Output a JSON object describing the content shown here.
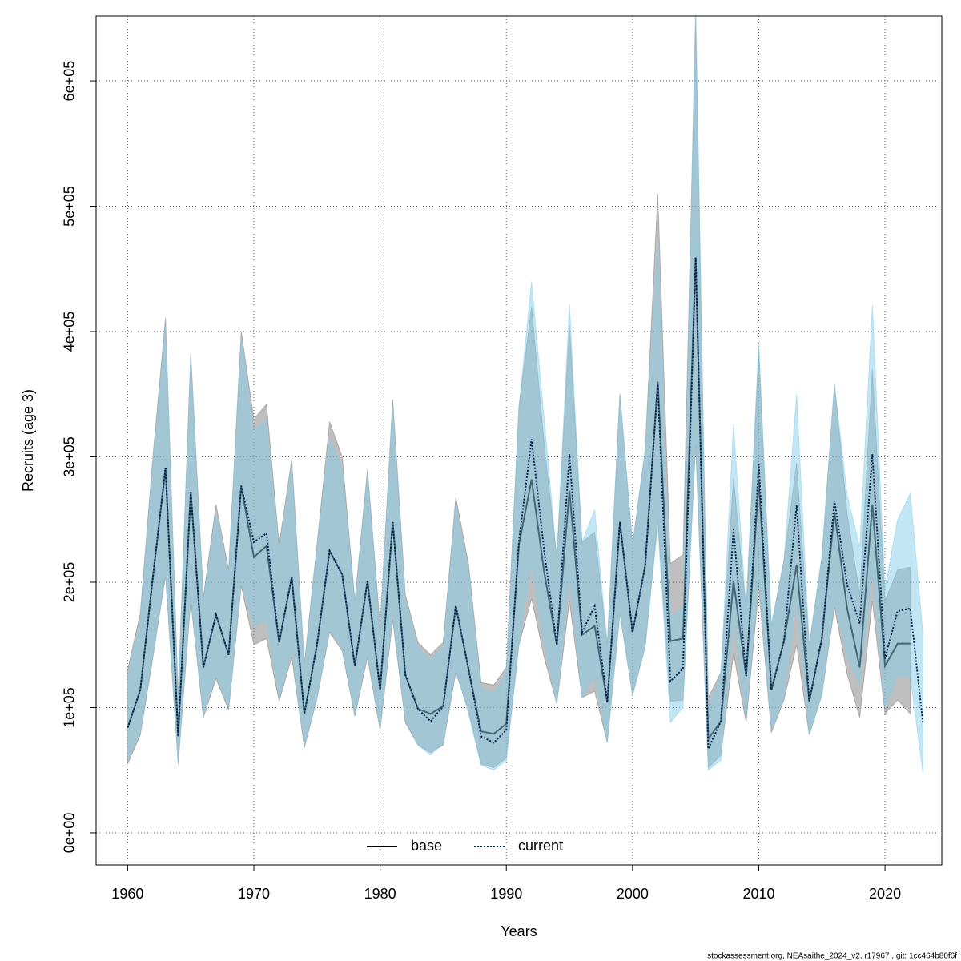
{
  "chart_data": {
    "type": "line",
    "xlabel": "Years",
    "ylabel": "Recruits (age 3)",
    "footnote": "stockassessment.org, NEAsaithe_2024_v2, r17967 , git: 1cc464b80f6f",
    "x": [
      1960,
      1961,
      1962,
      1963,
      1964,
      1965,
      1966,
      1967,
      1968,
      1969,
      1970,
      1971,
      1972,
      1973,
      1974,
      1975,
      1976,
      1977,
      1978,
      1979,
      1980,
      1981,
      1982,
      1983,
      1984,
      1985,
      1986,
      1987,
      1988,
      1989,
      1990,
      1991,
      1992,
      1993,
      1994,
      1995,
      1996,
      1997,
      1998,
      1999,
      2000,
      2001,
      2002,
      2003,
      2004,
      2005,
      2006,
      2007,
      2008,
      2009,
      2010,
      2011,
      2012,
      2013,
      2014,
      2015,
      2016,
      2017,
      2018,
      2019,
      2020,
      2021,
      2022,
      2023
    ],
    "xlim": [
      1957.5,
      2024.5
    ],
    "xticks": [
      1960,
      1970,
      1980,
      1990,
      2000,
      2010,
      2020
    ],
    "ylim": [
      -25600,
      651800
    ],
    "yticks": [
      {
        "value": 0,
        "label": "0e+00"
      },
      {
        "value": 100000,
        "label": "1e+05"
      },
      {
        "value": 200000,
        "label": "2e+05"
      },
      {
        "value": 300000,
        "label": "3e+05"
      },
      {
        "value": 400000,
        "label": "4e+05"
      },
      {
        "value": 500000,
        "label": "5e+05"
      },
      {
        "value": 600000,
        "label": "6e+05"
      }
    ],
    "grid": true,
    "legend": "bottom",
    "series": [
      {
        "name": "base",
        "color": "#000000",
        "dash": "solid",
        "band_color": "rgba(128,128,128,0.5)",
        "values": [
          84000,
          114000,
          204000,
          291000,
          77000,
          272000,
          132000,
          174000,
          142000,
          277000,
          220000,
          229000,
          152000,
          204000,
          95000,
          150000,
          225000,
          206000,
          133000,
          201000,
          114000,
          248000,
          126000,
          99000,
          95000,
          101000,
          181000,
          131000,
          81000,
          79000,
          87000,
          230000,
          282000,
          208000,
          150000,
          273000,
          158000,
          165000,
          104000,
          248000,
          160000,
          213000,
          360000,
          153000,
          155000,
          459000,
          75000,
          89000,
          201000,
          125000,
          281000,
          114000,
          153000,
          214000,
          105000,
          155000,
          256000,
          179000,
          132000,
          262000,
          133000,
          151000,
          151000,
          null
        ],
        "lower": [
          55000,
          78000,
          140000,
          205000,
          55000,
          185000,
          92000,
          123000,
          98000,
          197000,
          150000,
          155000,
          105000,
          140000,
          68000,
          107000,
          160000,
          145000,
          93000,
          140000,
          82000,
          170000,
          88000,
          70000,
          64000,
          70000,
          128000,
          98000,
          55000,
          52000,
          60000,
          150000,
          187000,
          140000,
          103000,
          185000,
          108000,
          113000,
          72000,
          175000,
          110000,
          148000,
          250000,
          105000,
          106000,
          310000,
          52000,
          62000,
          143000,
          88000,
          195000,
          80000,
          106000,
          150000,
          78000,
          110000,
          180000,
          127000,
          92000,
          185000,
          95000,
          106000,
          95000,
          null
        ],
        "upper": [
          130000,
          175000,
          300000,
          411000,
          110000,
          383000,
          188000,
          262000,
          210000,
          400000,
          330000,
          342000,
          230000,
          298000,
          135000,
          230000,
          328000,
          300000,
          185000,
          290000,
          165000,
          346000,
          190000,
          152000,
          142000,
          152000,
          268000,
          215000,
          120000,
          118000,
          132000,
          340000,
          420000,
          310000,
          220000,
          405000,
          232000,
          240000,
          150000,
          350000,
          230000,
          305000,
          510000,
          215000,
          222000,
          650000,
          108000,
          128000,
          283000,
          178000,
          385000,
          165000,
          218000,
          295000,
          150000,
          220000,
          358000,
          255000,
          190000,
          370000,
          185000,
          210000,
          212000,
          null
        ]
      },
      {
        "name": "current",
        "color": "#00264d",
        "dash": "dotted",
        "band_color": "rgba(135,206,235,0.5)",
        "values": [
          84000,
          114000,
          204000,
          291000,
          77000,
          272000,
          132000,
          174000,
          142000,
          277000,
          232000,
          239000,
          152000,
          204000,
          95000,
          150000,
          225000,
          206000,
          133000,
          201000,
          114000,
          248000,
          126000,
          99000,
          89000,
          101000,
          181000,
          131000,
          77000,
          72000,
          82000,
          233000,
          314000,
          225000,
          150000,
          302000,
          160000,
          181000,
          104000,
          248000,
          160000,
          213000,
          358000,
          121000,
          131000,
          459000,
          67000,
          89000,
          242000,
          125000,
          294000,
          114000,
          153000,
          262000,
          105000,
          155000,
          265000,
          198000,
          167000,
          302000,
          139000,
          177000,
          179000,
          88000
        ],
        "lower": [
          58000,
          80000,
          142000,
          207000,
          57000,
          188000,
          94000,
          125000,
          100000,
          200000,
          165000,
          170000,
          108000,
          145000,
          70000,
          108000,
          162000,
          148000,
          95000,
          143000,
          84000,
          175000,
          90000,
          70000,
          62000,
          72000,
          130000,
          95000,
          54000,
          50000,
          58000,
          150000,
          215000,
          150000,
          103000,
          205000,
          108000,
          125000,
          72000,
          175000,
          110000,
          148000,
          245000,
          88000,
          100000,
          315000,
          50000,
          58000,
          170000,
          92000,
          205000,
          82000,
          108000,
          185000,
          78000,
          110000,
          185000,
          140000,
          118000,
          210000,
          100000,
          125000,
          125000,
          48000
        ],
        "upper": [
          125000,
          170000,
          295000,
          405000,
          105000,
          378000,
          185000,
          255000,
          205000,
          395000,
          320000,
          330000,
          225000,
          292000,
          132000,
          228000,
          315000,
          290000,
          182000,
          285000,
          160000,
          340000,
          185000,
          148000,
          138000,
          148000,
          262000,
          210000,
          115000,
          112000,
          128000,
          340000,
          440000,
          330000,
          220000,
          422000,
          232000,
          258000,
          150000,
          350000,
          230000,
          305000,
          470000,
          172000,
          180000,
          665000,
          96000,
          128000,
          326000,
          178000,
          392000,
          165000,
          218000,
          350000,
          150000,
          220000,
          358000,
          270000,
          228000,
          421000,
          195000,
          250000,
          271000,
          160000
        ]
      }
    ]
  }
}
